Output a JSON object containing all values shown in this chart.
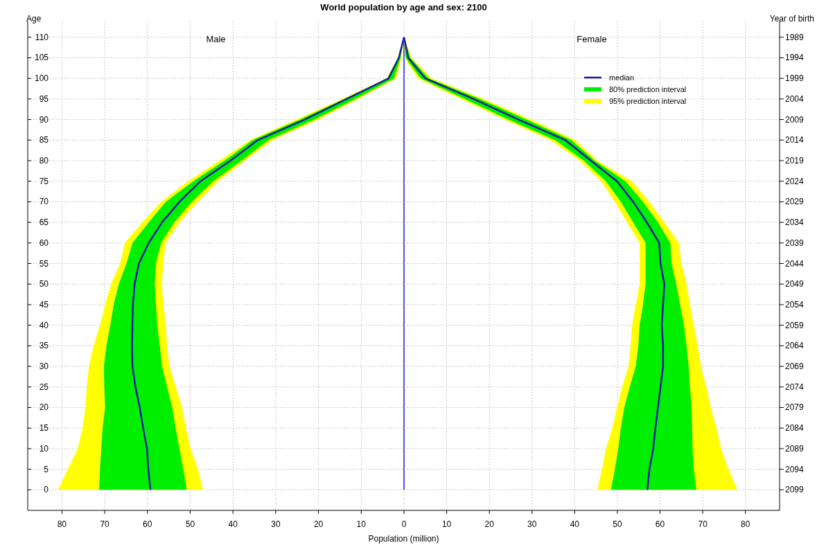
{
  "chart_data": [
    {
      "type": "line",
      "orientation": "horizontal",
      "title": "World population by age and sex: 2100",
      "xlabel": "Population (million)",
      "ylabel": "Age",
      "annotations": [
        "Male"
      ],
      "x": [
        0,
        5,
        10,
        15,
        20,
        25,
        30,
        35,
        40,
        45,
        50,
        55,
        60,
        65,
        70,
        75,
        80,
        85,
        90,
        95,
        100,
        105,
        110
      ],
      "xlim": [
        88,
        0
      ],
      "xticks": [
        80,
        70,
        60,
        50,
        40,
        30,
        20,
        10,
        0
      ],
      "ylim": [
        -5,
        114
      ],
      "yticks": [
        0,
        5,
        10,
        15,
        20,
        25,
        30,
        35,
        40,
        45,
        50,
        55,
        60,
        65,
        70,
        75,
        80,
        85,
        90,
        95,
        100,
        105,
        110
      ],
      "grid": true,
      "ref_lines": [
        {
          "axis": "x",
          "value": 0,
          "color": "#4d4dff"
        }
      ],
      "series": [
        {
          "color": "#ffff00",
          "values": [
            null,
            null,
            null,
            null,
            null,
            null,
            null,
            null,
            null,
            null,
            null,
            null,
            null,
            null,
            null,
            null,
            null,
            null,
            null,
            null,
            null,
            null,
            null
          ],
          "lower": [
            47.0,
            48.2,
            49.9,
            51.0,
            51.9,
            53.4,
            54.8,
            55.4,
            55.7,
            56.3,
            56.6,
            56.3,
            55.7,
            52.5,
            48.2,
            43.5,
            37.2,
            30.7,
            20.0,
            10.7,
            1.8,
            0.6,
            0
          ],
          "upper": [
            80.9,
            78.6,
            76.3,
            75.2,
            74.5,
            74.2,
            73.7,
            72.6,
            71.1,
            69.9,
            68.5,
            66.4,
            65.3,
            61.2,
            56.8,
            50.5,
            43.2,
            36.0,
            25.2,
            14.5,
            4.1,
            1.5,
            0
          ]
        },
        {
          "color": "#00ee00",
          "values": [
            null,
            null,
            null,
            null,
            null,
            null,
            null,
            null,
            null,
            null,
            null,
            null,
            null,
            null,
            null,
            null,
            null,
            null,
            null,
            null,
            null,
            null,
            null
          ],
          "lower": [
            50.8,
            51.6,
            52.5,
            53.4,
            54.2,
            55.4,
            56.6,
            57.1,
            57.7,
            58.0,
            58.3,
            58.0,
            56.8,
            53.7,
            49.6,
            44.6,
            38.0,
            31.7,
            20.9,
            11.4,
            2.3,
            0.8,
            0
          ],
          "upper": [
            71.3,
            71.1,
            70.8,
            70.5,
            69.9,
            70.1,
            70.2,
            69.6,
            68.7,
            67.9,
            66.7,
            64.9,
            63.5,
            59.7,
            55.7,
            49.3,
            42.0,
            35.4,
            24.3,
            14.0,
            3.9,
            1.4,
            0
          ]
        },
        {
          "color": "#1a1aa6",
          "values": [
            59.3,
            59.8,
            60.1,
            61.0,
            61.8,
            62.8,
            63.5,
            63.6,
            63.5,
            63.4,
            63.0,
            62.0,
            59.7,
            56.6,
            52.5,
            47.6,
            40.6,
            34.2,
            23.2,
            13.4,
            3.6,
            1.2,
            0
          ]
        }
      ]
    },
    {
      "type": "line",
      "orientation": "horizontal",
      "y2label": "Year of birth",
      "annotations": [
        "Female"
      ],
      "x": [
        0,
        5,
        10,
        15,
        20,
        25,
        30,
        35,
        40,
        45,
        50,
        55,
        60,
        65,
        70,
        75,
        80,
        85,
        90,
        95,
        100,
        105,
        110
      ],
      "xlim": [
        0,
        88
      ],
      "xticks": [
        10,
        20,
        30,
        40,
        50,
        60,
        70,
        80
      ],
      "ylim": [
        -5,
        114
      ],
      "y2lim": [
        2104,
        1985
      ],
      "y2ticks": [
        2099,
        2094,
        2089,
        2084,
        2079,
        2074,
        2069,
        2064,
        2059,
        2054,
        2049,
        2044,
        2039,
        2034,
        2029,
        2024,
        2019,
        2014,
        2009,
        2004,
        1999,
        1994,
        1989
      ],
      "grid": true,
      "legend": "top right",
      "series": [
        {
          "name": "95% prediction interval",
          "color": "#ffff00",
          "values": [
            null,
            null,
            null,
            null,
            null,
            null,
            null,
            null,
            null,
            null,
            null,
            null,
            null,
            null,
            null,
            null,
            null,
            null,
            null,
            null,
            null,
            null,
            null
          ],
          "lower": [
            45.3,
            46.4,
            47.3,
            48.8,
            49.9,
            51.1,
            52.6,
            53.1,
            53.4,
            54.3,
            55.2,
            55.2,
            55.2,
            52.3,
            49.4,
            46.2,
            41.2,
            34.3,
            23.5,
            13.4,
            3.2,
            0.2,
            0
          ],
          "upper": [
            78.1,
            76.0,
            74.3,
            73.2,
            71.9,
            70.8,
            69.6,
            68.8,
            67.9,
            67.0,
            66.2,
            65.0,
            64.4,
            61.0,
            57.5,
            53.4,
            45.3,
            40.1,
            29.7,
            18.7,
            6.5,
            1.8,
            0
          ]
        },
        {
          "name": "80% prediction interval",
          "color": "#00ee00",
          "values": [
            null,
            null,
            null,
            null,
            null,
            null,
            null,
            null,
            null,
            null,
            null,
            null,
            null,
            null,
            null,
            null,
            null,
            null,
            null,
            null,
            null,
            null,
            null
          ],
          "lower": [
            48.5,
            49.4,
            50.2,
            50.8,
            51.6,
            52.9,
            54.3,
            54.9,
            55.2,
            56.0,
            56.6,
            56.6,
            56.6,
            53.7,
            50.8,
            47.3,
            42.1,
            35.4,
            24.4,
            14.3,
            3.9,
            0.4,
            0
          ],
          "upper": [
            68.5,
            67.9,
            67.6,
            67.5,
            67.4,
            67.0,
            66.7,
            66.2,
            65.6,
            64.7,
            63.8,
            62.7,
            62.4,
            59.5,
            56.0,
            51.9,
            44.7,
            39.2,
            28.7,
            17.8,
            5.8,
            1.5,
            0
          ]
        },
        {
          "name": "median",
          "color": "#1a1aa6",
          "values": [
            57.0,
            57.5,
            58.4,
            58.9,
            59.5,
            60.1,
            60.7,
            60.7,
            60.4,
            60.7,
            61.0,
            60.1,
            59.8,
            56.9,
            53.7,
            49.9,
            43.8,
            37.8,
            26.8,
            16.3,
            5.0,
            1.0,
            0
          ]
        }
      ]
    }
  ]
}
